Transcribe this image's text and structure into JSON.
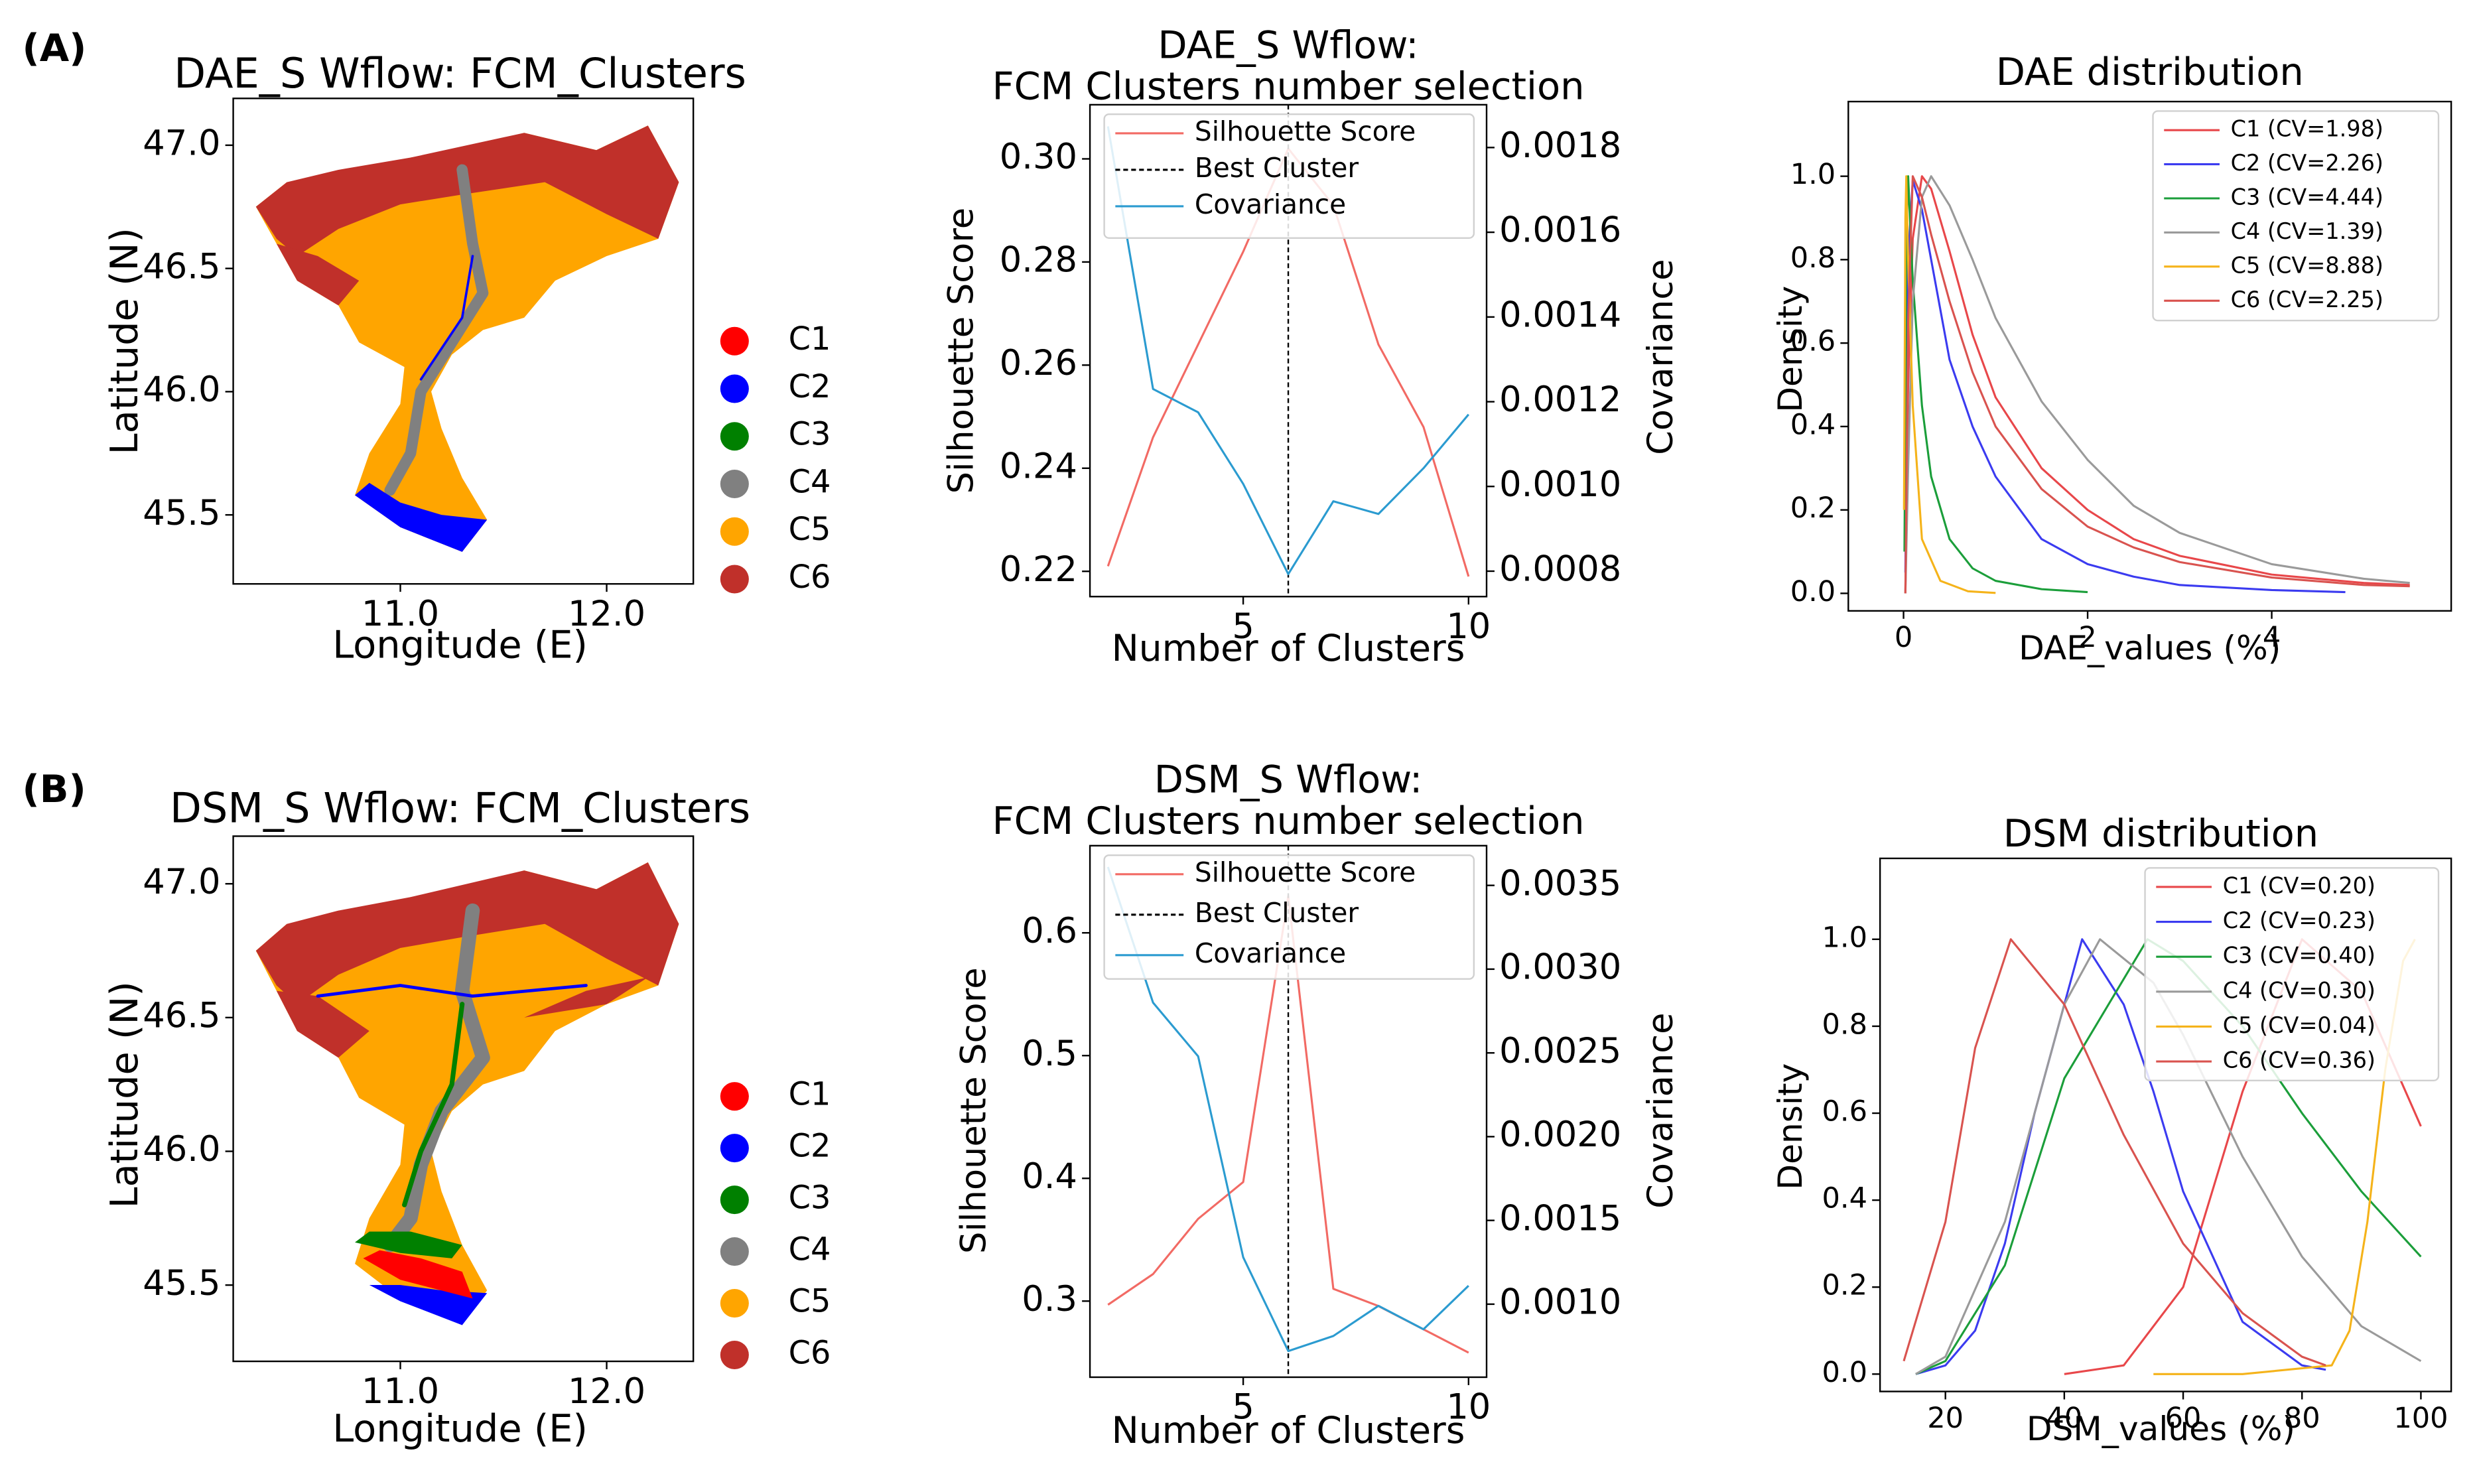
{
  "panel_labels": [
    "(A)",
    "(B)"
  ],
  "chart_data": [
    {
      "type": "map",
      "title": "DAE_S Wflow: FCM_Clusters",
      "xlabel": "Longitude (E)",
      "ylabel": "Latitude (N)",
      "xlim": [
        10.19,
        12.42
      ],
      "ylim": [
        45.22,
        47.19
      ],
      "xticks": [
        {
          "value": 11,
          "label": "11.0"
        },
        {
          "value": 12,
          "label": "12.0"
        }
      ],
      "yticks": [
        45.5,
        {
          "value": 46,
          "label": "46.0"
        },
        46.5,
        {
          "value": 47,
          "label": "47.0"
        }
      ],
      "categories": [
        "C1",
        "C2",
        "C3",
        "C4",
        "C5",
        "C6"
      ],
      "colors": [
        "#ff0000",
        "#0000ff",
        "#008000",
        "#808080",
        "#ffa500",
        "#c0302a"
      ]
    },
    {
      "type": "line",
      "title": [
        "DAE_S Wflow:",
        "FCM Clusters number selection"
      ],
      "xlabel": "Number of Clusters",
      "ylabel": "Silhouette Score",
      "y2label": "Covariance",
      "x": [
        2,
        3,
        4,
        5,
        6,
        7,
        8,
        9,
        10
      ],
      "xlim": [
        1.6,
        10.4
      ],
      "xticks": [
        5,
        10
      ],
      "ylim": [
        0.2151,
        0.3105
      ],
      "yticks": [
        0.22,
        0.24,
        0.26,
        0.28,
        {
          "value": 0.3,
          "label": "0.30"
        }
      ],
      "y2lim": [
        0.00074,
        0.001901
      ],
      "y2ticks": [
        0.0008,
        {
          "value": 0.001,
          "label": "0.0010"
        },
        0.0012,
        0.0014,
        0.0016,
        0.0018
      ],
      "legend": "upper right",
      "series": [
        {
          "name": "Silhouette Score",
          "color": "#f26a64",
          "values": [
            0.221,
            0.246,
            0.264,
            0.282,
            0.302,
            0.291,
            0.264,
            0.248,
            0.219
          ]
        },
        {
          "name": "Best Cluster",
          "color": "#000000",
          "style": "dashed",
          "vline": 6
        },
        {
          "name": "Covariance",
          "color": "#2b9bd0",
          "axis": "y2",
          "values": [
            0.00185,
            0.00123,
            0.001175,
            0.001006,
            0.000793,
            0.000965,
            0.000935,
            0.001043,
            0.00117
          ]
        }
      ]
    },
    {
      "type": "line",
      "title": "DAE distribution",
      "xlabel": "DAE_values (%)",
      "ylabel": "Density",
      "xlim": [
        -0.6,
        5.95
      ],
      "xticks": [
        0,
        2,
        4
      ],
      "ylim": [
        -0.042,
        1.179
      ],
      "yticks": [
        {
          "value": 0,
          "label": "0.0"
        },
        0.2,
        0.4,
        0.6,
        0.8,
        {
          "value": 1,
          "label": "1.0"
        }
      ],
      "legend": "upper right",
      "series": [
        {
          "name": "C1 (CV=1.98)",
          "color": "#e8474a",
          "x": [
            0.02,
            0.05,
            0.1,
            0.2,
            0.3,
            0.5,
            0.75,
            1,
            1.5,
            2,
            2.5,
            3,
            4,
            5,
            5.5
          ],
          "values": [
            0,
            0.5,
            0.85,
            1,
            0.97,
            0.82,
            0.62,
            0.47,
            0.3,
            0.2,
            0.13,
            0.09,
            0.045,
            0.025,
            0.02
          ]
        },
        {
          "name": "C2 (CV=2.26)",
          "color": "#3b3bf0",
          "x": [
            0.02,
            0.05,
            0.1,
            0.2,
            0.3,
            0.5,
            0.75,
            1,
            1.5,
            2,
            2.5,
            3,
            4,
            4.8
          ],
          "values": [
            0.05,
            0.8,
            0.99,
            0.92,
            0.8,
            0.56,
            0.4,
            0.28,
            0.13,
            0.07,
            0.04,
            0.02,
            0.008,
            0.003
          ]
        },
        {
          "name": "C3 (CV=4.44)",
          "color": "#1b9e3a",
          "x": [
            0.01,
            0.03,
            0.05,
            0.1,
            0.2,
            0.3,
            0.5,
            0.75,
            1,
            1.5,
            2
          ],
          "values": [
            0.1,
            0.85,
            1,
            0.75,
            0.45,
            0.28,
            0.13,
            0.06,
            0.03,
            0.01,
            0.003
          ]
        },
        {
          "name": "C4 (CV=1.39)",
          "color": "#9a9a9a",
          "x": [
            0.02,
            0.05,
            0.1,
            0.2,
            0.3,
            0.5,
            0.75,
            1,
            1.5,
            2,
            2.5,
            3,
            4,
            5,
            5.5
          ],
          "values": [
            0,
            0.3,
            0.7,
            0.95,
            1,
            0.93,
            0.8,
            0.66,
            0.46,
            0.32,
            0.21,
            0.145,
            0.07,
            0.035,
            0.025
          ]
        },
        {
          "name": "C5 (CV=8.88)",
          "color": "#f5b31a",
          "x": [
            0.005,
            0.02,
            0.03,
            0.05,
            0.1,
            0.2,
            0.4,
            0.7,
            1
          ],
          "values": [
            0.2,
            0.9,
            1,
            0.8,
            0.45,
            0.13,
            0.03,
            0.005,
            0.001
          ]
        },
        {
          "name": "C6 (CV=2.25)",
          "color": "#d9534f",
          "x": [
            0.02,
            0.05,
            0.1,
            0.2,
            0.3,
            0.5,
            0.75,
            1,
            1.5,
            2,
            2.5,
            3,
            4,
            5,
            5.5
          ],
          "values": [
            0,
            0.65,
            1,
            0.95,
            0.86,
            0.7,
            0.53,
            0.4,
            0.25,
            0.16,
            0.11,
            0.075,
            0.038,
            0.02,
            0.017
          ]
        }
      ]
    },
    {
      "type": "map",
      "title": "DSM_S Wflow: FCM_Clusters",
      "xlabel": "Longitude (E)",
      "ylabel": "Latitude (N)",
      "xlim": [
        10.19,
        12.42
      ],
      "ylim": [
        45.215,
        47.178
      ],
      "xticks": [
        {
          "value": 11,
          "label": "11.0"
        },
        {
          "value": 12,
          "label": "12.0"
        }
      ],
      "yticks": [
        45.5,
        {
          "value": 46,
          "label": "46.0"
        },
        46.5,
        {
          "value": 47,
          "label": "47.0"
        }
      ],
      "categories": [
        "C1",
        "C2",
        "C3",
        "C4",
        "C5",
        "C6"
      ],
      "colors": [
        "#ff0000",
        "#0000ff",
        "#008000",
        "#808080",
        "#ffa500",
        "#c0302a"
      ]
    },
    {
      "type": "line",
      "title": [
        "DSM_S Wflow:",
        "FCM Clusters number selection"
      ],
      "xlabel": "Number of Clusters",
      "ylabel": "Silhouette Score",
      "y2label": "Covariance",
      "x": [
        2,
        3,
        4,
        5,
        6,
        7,
        8,
        9,
        10
      ],
      "xlim": [
        1.6,
        10.4
      ],
      "xticks": [
        5,
        10
      ],
      "ylim": [
        0.238,
        0.671
      ],
      "yticks": [
        0.3,
        0.4,
        0.5,
        0.6
      ],
      "y2lim": [
        0.000564,
        0.003737
      ],
      "y2ticks": [
        {
          "value": 0.001,
          "label": "0.0010"
        },
        0.0015,
        {
          "value": 0.002,
          "label": "0.0020"
        },
        0.0025,
        {
          "value": 0.003,
          "label": "0.0030"
        },
        0.0035
      ],
      "legend": "upper right",
      "series": [
        {
          "name": "Silhouette Score",
          "color": "#f26a64",
          "values": [
            0.297,
            0.322,
            0.367,
            0.397,
            0.63,
            0.31,
            0.296,
            0.277,
            0.258
          ]
        },
        {
          "name": "Best Cluster",
          "color": "#000000",
          "style": "dashed",
          "vline": 6
        },
        {
          "name": "Covariance",
          "color": "#2b9bd0",
          "axis": "y2",
          "values": [
            0.00361,
            0.0028,
            0.00248,
            0.00128,
            0.00072,
            0.00081,
            0.00099,
            0.00085,
            0.00111
          ]
        }
      ]
    },
    {
      "type": "line",
      "title": "DSM distribution",
      "xlabel": "DSM_values (%)",
      "ylabel": "Density",
      "xlim": [
        9,
        105.1
      ],
      "xticks": [
        20,
        40,
        60,
        80,
        100
      ],
      "ylim": [
        -0.04,
        1.186
      ],
      "yticks": [
        {
          "value": 0,
          "label": "0.0"
        },
        0.2,
        0.4,
        0.6,
        0.8,
        {
          "value": 1,
          "label": "1.0"
        }
      ],
      "legend": "upper right",
      "series": [
        {
          "name": "C1 (CV=0.20)",
          "color": "#e8474a",
          "x": [
            40,
            50,
            60,
            70,
            80,
            90,
            100
          ],
          "values": [
            0,
            0.02,
            0.2,
            0.65,
            1,
            0.88,
            0.57
          ]
        },
        {
          "name": "C2 (CV=0.23)",
          "color": "#3b3bf0",
          "x": [
            15,
            20,
            25,
            30,
            35,
            43,
            50,
            55,
            60,
            70,
            80,
            84
          ],
          "values": [
            0,
            0.02,
            0.1,
            0.3,
            0.6,
            1,
            0.85,
            0.65,
            0.42,
            0.12,
            0.02,
            0.01
          ]
        },
        {
          "name": "C3 (CV=0.40)",
          "color": "#1b9e3a",
          "x": [
            15,
            20,
            30,
            40,
            54,
            60,
            70,
            80,
            90,
            100
          ],
          "values": [
            0,
            0.03,
            0.25,
            0.68,
            1,
            0.95,
            0.8,
            0.6,
            0.42,
            0.27
          ]
        },
        {
          "name": "C4 (CV=0.30)",
          "color": "#9a9a9a",
          "x": [
            15,
            20,
            30,
            40,
            46,
            55,
            60,
            70,
            80,
            90,
            100
          ],
          "values": [
            0,
            0.04,
            0.35,
            0.85,
            1,
            0.9,
            0.78,
            0.5,
            0.27,
            0.11,
            0.03
          ]
        },
        {
          "name": "C5 (CV=0.04)",
          "color": "#f5b31a",
          "x": [
            55,
            70,
            85,
            88,
            91,
            94,
            97,
            99
          ],
          "values": [
            0,
            0,
            0.02,
            0.1,
            0.35,
            0.7,
            0.95,
            1
          ]
        },
        {
          "name": "C6 (CV=0.36)",
          "color": "#d9534f",
          "x": [
            13,
            20,
            25,
            31,
            40,
            50,
            60,
            70,
            80,
            84
          ],
          "values": [
            0.03,
            0.35,
            0.75,
            1,
            0.85,
            0.55,
            0.3,
            0.14,
            0.04,
            0.02
          ]
        }
      ]
    }
  ]
}
